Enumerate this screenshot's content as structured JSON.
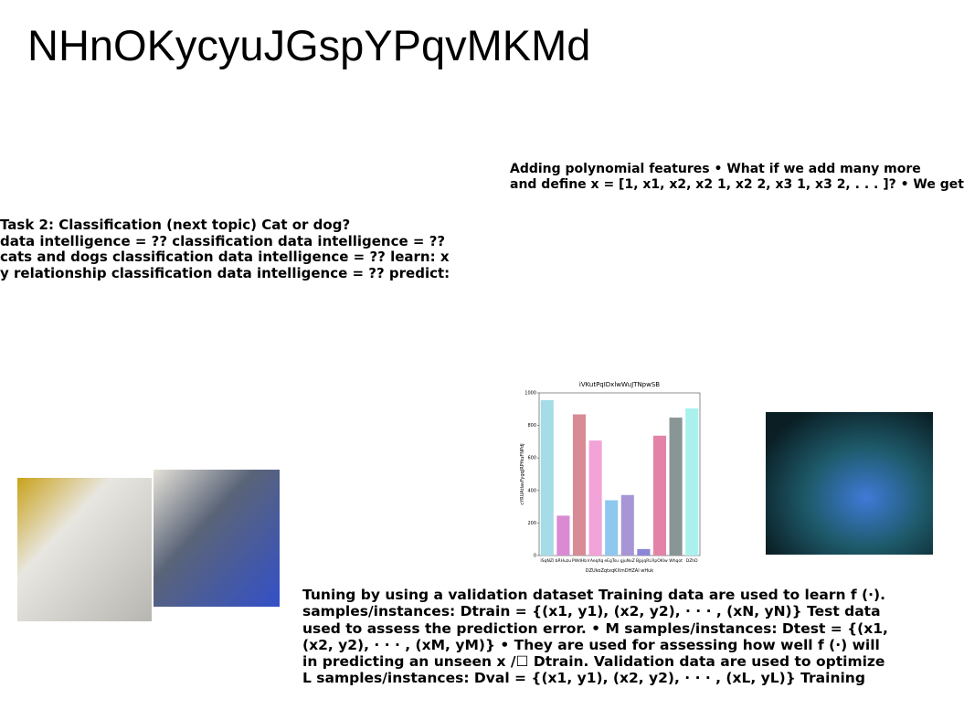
{
  "title": "NHnOKycyuJGspYPqvMKMd",
  "poly_text": [
    "Adding polynomial features • What if we add many more",
    "and define x = [1, x1, x2, x2 1, x2 2, x3 1, x3 2, . . . ]? • We get"
  ],
  "task_text": [
    "Task 2: Classification (next topic) Cat or dog?",
    "data intelligence = ?? classification data intelligence = ??",
    "cats and dogs classification data intelligence = ?? learn: x",
    "y relationship classification data intelligence = ?? predict:"
  ],
  "tuning_text": [
    "Tuning by using a validation dataset Training data are used to learn f (·).",
    "samples/instances: Dtrain = {(x1, y1), (x2, y2), · · · , (xN, yN)} Test data",
    "used to assess the prediction error. • M samples/instances: Dtest = {(x1,",
    "(x2, y2), · · · , (xM, yM)} • They are used for assessing how well f (·) will",
    "in predicting an unseen x /☐ Dtrain. Validation data are used to optimize",
    "L samples/instances: Dval = {(x1, y1), (x2, y2), · · · , (xL, yL)} Training"
  ],
  "chart_data": {
    "type": "bar",
    "title": "iVKutPqIDxlwWuJTNpwSB",
    "x_label": "DZUkoZqtxqKXmDHZAI wHuk",
    "y_label": "cYRUAtlavFygqJRPfkuFNPdJ",
    "categories": [
      "ISqNZl",
      "bRHuzu",
      "PWdHb",
      "lrAeqXq",
      "eEgTsu",
      "gjuNvZ",
      "BjpjqRL",
      "RpOKlw",
      "Whqot",
      "DZhD"
    ],
    "values": [
      955,
      245,
      868,
      707,
      340,
      372,
      40,
      737,
      848,
      905
    ],
    "colors": [
      "#a6dbe8",
      "#d98ad3",
      "#d88b95",
      "#f2a3d8",
      "#8fc8ef",
      "#a795d6",
      "#8b86d8",
      "#e383a8",
      "#8a9596",
      "#aaf1ee"
    ],
    "ylim": [
      0,
      1000
    ],
    "yticks": [
      0,
      200,
      400,
      600,
      800,
      1000
    ]
  }
}
